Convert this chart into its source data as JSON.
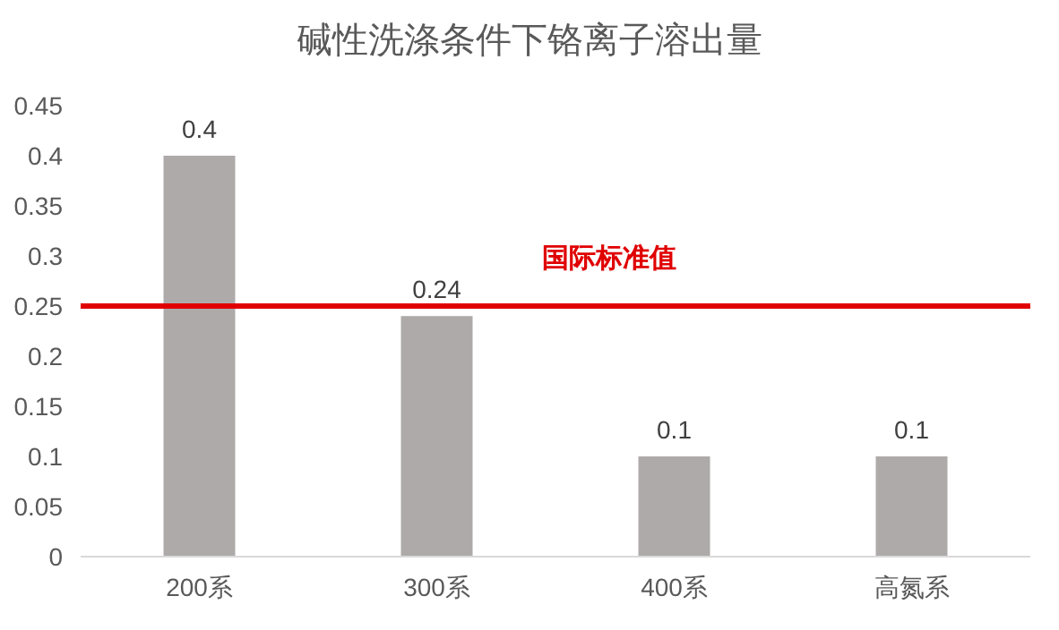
{
  "chart_data": {
    "type": "bar",
    "title": "碱性洗涤条件下铬离子溶出量",
    "categories": [
      "200系",
      "300系",
      "400系",
      "高氮系"
    ],
    "values": [
      0.4,
      0.24,
      0.1,
      0.1
    ],
    "color": "#aeaaaa",
    "ylim": [
      0,
      0.45
    ],
    "yticks": [
      0,
      0.05,
      0.1,
      0.15,
      0.2,
      0.25,
      0.3,
      0.35,
      0.4,
      0.45
    ],
    "data_labels": true,
    "grid": false,
    "ref_lines": [
      {
        "axis": "y",
        "value": 0.25,
        "label": "国际标准值",
        "color": "#e00000"
      }
    ]
  }
}
